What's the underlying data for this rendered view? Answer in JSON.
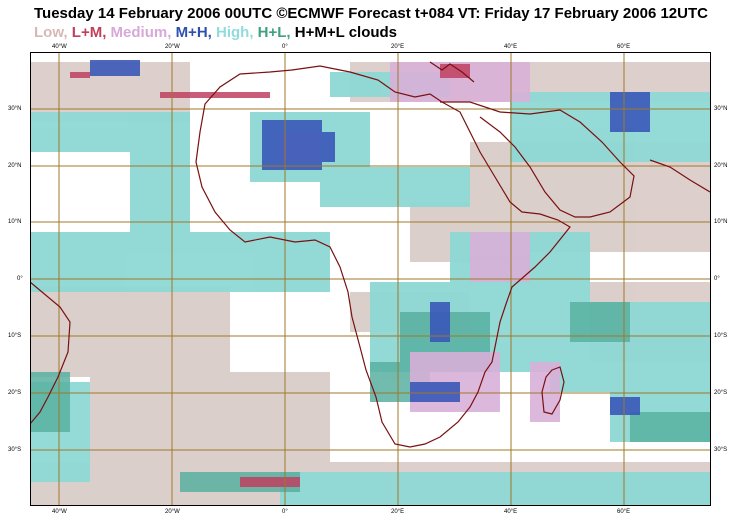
{
  "header": {
    "title": "Tuesday 14 February 2006 00UTC ©ECMWF Forecast t+084 VT: Friday 17 February 2006 12UTC"
  },
  "legend": {
    "items": [
      {
        "label": "Low,",
        "color": "#d8b8b4"
      },
      {
        "label": "L+M,",
        "color": "#c0405c"
      },
      {
        "label": "Medium,",
        "color": "#d8a8d8"
      },
      {
        "label": "M+H,",
        "color": "#3050b0"
      },
      {
        "label": "High,",
        "color": "#90dcdc"
      },
      {
        "label": "H+L,",
        "color": "#40a080"
      },
      {
        "label": "H+M+L clouds",
        "color": "#000000"
      }
    ]
  },
  "map": {
    "lon_labels": [
      "40°W",
      "20°W",
      "0°",
      "20°E",
      "40°E",
      "60°E"
    ],
    "lat_labels_left": [
      "30°N",
      "20°N",
      "10°N",
      "0°",
      "10°S",
      "20°S",
      "30°S"
    ],
    "lat_labels_right": [
      "30°N",
      "20°N",
      "10°N",
      "0°",
      "10°S",
      "20°S",
      "30°S"
    ],
    "colors": {
      "coastline": "#7a1010",
      "gridline": "#a07828",
      "low": "#d8c8c4",
      "high": "#8ed8d4",
      "high_low": "#58b0a0",
      "medium": "#d8b0d8",
      "medium_high": "#3a58b8",
      "low_medium": "#c04060"
    }
  }
}
